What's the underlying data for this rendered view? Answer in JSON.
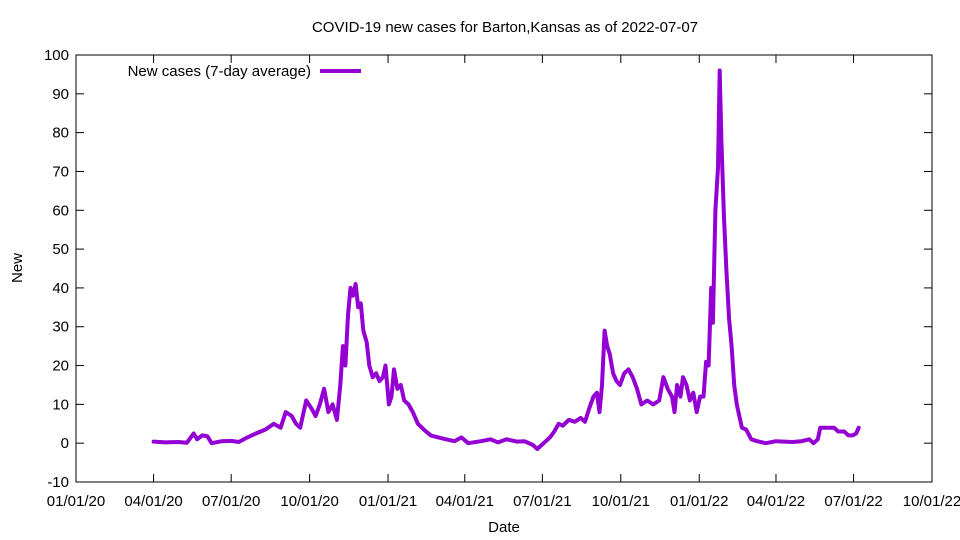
{
  "chart_data": {
    "type": "line",
    "title": "COVID-19 new cases for Barton,Kansas as of 2022-07-07",
    "xlabel": "Date",
    "ylabel": "New",
    "xlim": [
      "2020-01-01",
      "2022-10-01"
    ],
    "ylim": [
      -10,
      100
    ],
    "xticks": [
      "01/01/20",
      "04/01/20",
      "07/01/20",
      "10/01/20",
      "01/01/21",
      "04/01/21",
      "07/01/21",
      "10/01/21",
      "01/01/22",
      "04/01/22",
      "07/01/22",
      "10/01/22"
    ],
    "yticks": [
      -10,
      0,
      10,
      20,
      30,
      40,
      50,
      60,
      70,
      80,
      90,
      100
    ],
    "grid": false,
    "legend": "top-left",
    "series": [
      {
        "name": "New cases (7-day average)",
        "color": "#9400d3",
        "points": [
          [
            "2020-04-01",
            0.4
          ],
          [
            "2020-04-15",
            0.2
          ],
          [
            "2020-04-30",
            0.3
          ],
          [
            "2020-05-10",
            0.1
          ],
          [
            "2020-05-18",
            2.5
          ],
          [
            "2020-05-22",
            1.0
          ],
          [
            "2020-05-28",
            2.0
          ],
          [
            "2020-06-03",
            1.8
          ],
          [
            "2020-06-08",
            0.0
          ],
          [
            "2020-06-20",
            0.5
          ],
          [
            "2020-07-01",
            0.6
          ],
          [
            "2020-07-10",
            0.3
          ],
          [
            "2020-07-20",
            1.5
          ],
          [
            "2020-07-30",
            2.5
          ],
          [
            "2020-08-10",
            3.5
          ],
          [
            "2020-08-20",
            5.0
          ],
          [
            "2020-08-28",
            4.0
          ],
          [
            "2020-09-03",
            8.0
          ],
          [
            "2020-09-10",
            7.0
          ],
          [
            "2020-09-15",
            5.0
          ],
          [
            "2020-09-20",
            4.0
          ],
          [
            "2020-09-27",
            11.0
          ],
          [
            "2020-10-03",
            9.0
          ],
          [
            "2020-10-08",
            7.0
          ],
          [
            "2020-10-13",
            10.0
          ],
          [
            "2020-10-18",
            14.0
          ],
          [
            "2020-10-23",
            8.0
          ],
          [
            "2020-10-28",
            10.0
          ],
          [
            "2020-11-02",
            6.0
          ],
          [
            "2020-11-06",
            15.0
          ],
          [
            "2020-11-09",
            25.0
          ],
          [
            "2020-11-12",
            20.0
          ],
          [
            "2020-11-15",
            33.0
          ],
          [
            "2020-11-18",
            40.0
          ],
          [
            "2020-11-21",
            38.0
          ],
          [
            "2020-11-24",
            41.0
          ],
          [
            "2020-11-27",
            35.0
          ],
          [
            "2020-11-30",
            36.0
          ],
          [
            "2020-12-03",
            29.0
          ],
          [
            "2020-12-07",
            26.0
          ],
          [
            "2020-12-10",
            20.0
          ],
          [
            "2020-12-14",
            17.0
          ],
          [
            "2020-12-18",
            18.0
          ],
          [
            "2020-12-22",
            16.0
          ],
          [
            "2020-12-26",
            17.0
          ],
          [
            "2020-12-29",
            20.0
          ],
          [
            "2021-01-02",
            10.0
          ],
          [
            "2021-01-05",
            12.0
          ],
          [
            "2021-01-08",
            19.0
          ],
          [
            "2021-01-12",
            14.0
          ],
          [
            "2021-01-16",
            15.0
          ],
          [
            "2021-01-20",
            11.0
          ],
          [
            "2021-01-25",
            10.0
          ],
          [
            "2021-01-30",
            8.0
          ],
          [
            "2021-02-05",
            5.0
          ],
          [
            "2021-02-12",
            3.5
          ],
          [
            "2021-02-20",
            2.0
          ],
          [
            "2021-03-01",
            1.5
          ],
          [
            "2021-03-10",
            1.0
          ],
          [
            "2021-03-20",
            0.5
          ],
          [
            "2021-03-28",
            1.5
          ],
          [
            "2021-04-05",
            0.0
          ],
          [
            "2021-04-20",
            0.5
          ],
          [
            "2021-05-01",
            1.0
          ],
          [
            "2021-05-10",
            0.2
          ],
          [
            "2021-05-20",
            1.0
          ],
          [
            "2021-06-01",
            0.4
          ],
          [
            "2021-06-10",
            0.5
          ],
          [
            "2021-06-20",
            -0.5
          ],
          [
            "2021-06-25",
            -1.5
          ],
          [
            "2021-06-30",
            -0.5
          ],
          [
            "2021-07-05",
            0.5
          ],
          [
            "2021-07-10",
            1.5
          ],
          [
            "2021-07-15",
            3.0
          ],
          [
            "2021-07-20",
            5.0
          ],
          [
            "2021-07-25",
            4.5
          ],
          [
            "2021-08-01",
            6.0
          ],
          [
            "2021-08-08",
            5.5
          ],
          [
            "2021-08-15",
            6.5
          ],
          [
            "2021-08-20",
            5.5
          ],
          [
            "2021-08-25",
            9.0
          ],
          [
            "2021-08-30",
            12.0
          ],
          [
            "2021-09-03",
            13.0
          ],
          [
            "2021-09-06",
            8.0
          ],
          [
            "2021-09-09",
            15.0
          ],
          [
            "2021-09-12",
            29.0
          ],
          [
            "2021-09-15",
            25.0
          ],
          [
            "2021-09-18",
            23.0
          ],
          [
            "2021-09-22",
            18.0
          ],
          [
            "2021-09-26",
            16.0
          ],
          [
            "2021-09-30",
            15.0
          ],
          [
            "2021-10-05",
            18.0
          ],
          [
            "2021-10-10",
            19.0
          ],
          [
            "2021-10-15",
            17.0
          ],
          [
            "2021-10-20",
            14.0
          ],
          [
            "2021-10-25",
            10.0
          ],
          [
            "2021-11-01",
            11.0
          ],
          [
            "2021-11-08",
            10.0
          ],
          [
            "2021-11-15",
            11.0
          ],
          [
            "2021-11-20",
            17.0
          ],
          [
            "2021-11-25",
            14.0
          ],
          [
            "2021-11-30",
            12.0
          ],
          [
            "2021-12-03",
            8.0
          ],
          [
            "2021-12-06",
            15.0
          ],
          [
            "2021-12-10",
            12.0
          ],
          [
            "2021-12-13",
            17.0
          ],
          [
            "2021-12-17",
            15.0
          ],
          [
            "2021-12-21",
            11.0
          ],
          [
            "2021-12-25",
            13.0
          ],
          [
            "2021-12-29",
            8.0
          ],
          [
            "2022-01-02",
            12.0
          ],
          [
            "2022-01-06",
            12.0
          ],
          [
            "2022-01-09",
            21.0
          ],
          [
            "2022-01-12",
            20.0
          ],
          [
            "2022-01-15",
            40.0
          ],
          [
            "2022-01-17",
            31.0
          ],
          [
            "2022-01-20",
            60.0
          ],
          [
            "2022-01-23",
            71.0
          ],
          [
            "2022-01-25",
            96.0
          ],
          [
            "2022-01-27",
            78.0
          ],
          [
            "2022-01-30",
            58.0
          ],
          [
            "2022-02-02",
            44.0
          ],
          [
            "2022-02-05",
            32.0
          ],
          [
            "2022-02-08",
            25.0
          ],
          [
            "2022-02-11",
            15.0
          ],
          [
            "2022-02-14",
            10.0
          ],
          [
            "2022-02-17",
            7.0
          ],
          [
            "2022-02-20",
            4.0
          ],
          [
            "2022-02-25",
            3.5
          ],
          [
            "2022-03-03",
            1.0
          ],
          [
            "2022-03-10",
            0.5
          ],
          [
            "2022-03-20",
            0.0
          ],
          [
            "2022-04-01",
            0.5
          ],
          [
            "2022-04-20",
            0.3
          ],
          [
            "2022-05-01",
            0.5
          ],
          [
            "2022-05-10",
            1.0
          ],
          [
            "2022-05-15",
            0.0
          ],
          [
            "2022-05-20",
            1.0
          ],
          [
            "2022-05-23",
            4.0
          ],
          [
            "2022-05-30",
            4.0
          ],
          [
            "2022-06-08",
            4.0
          ],
          [
            "2022-06-13",
            3.0
          ],
          [
            "2022-06-20",
            3.0
          ],
          [
            "2022-06-25",
            2.0
          ],
          [
            "2022-06-30",
            2.0
          ],
          [
            "2022-07-04",
            2.5
          ],
          [
            "2022-07-07",
            4.0
          ]
        ]
      }
    ]
  }
}
